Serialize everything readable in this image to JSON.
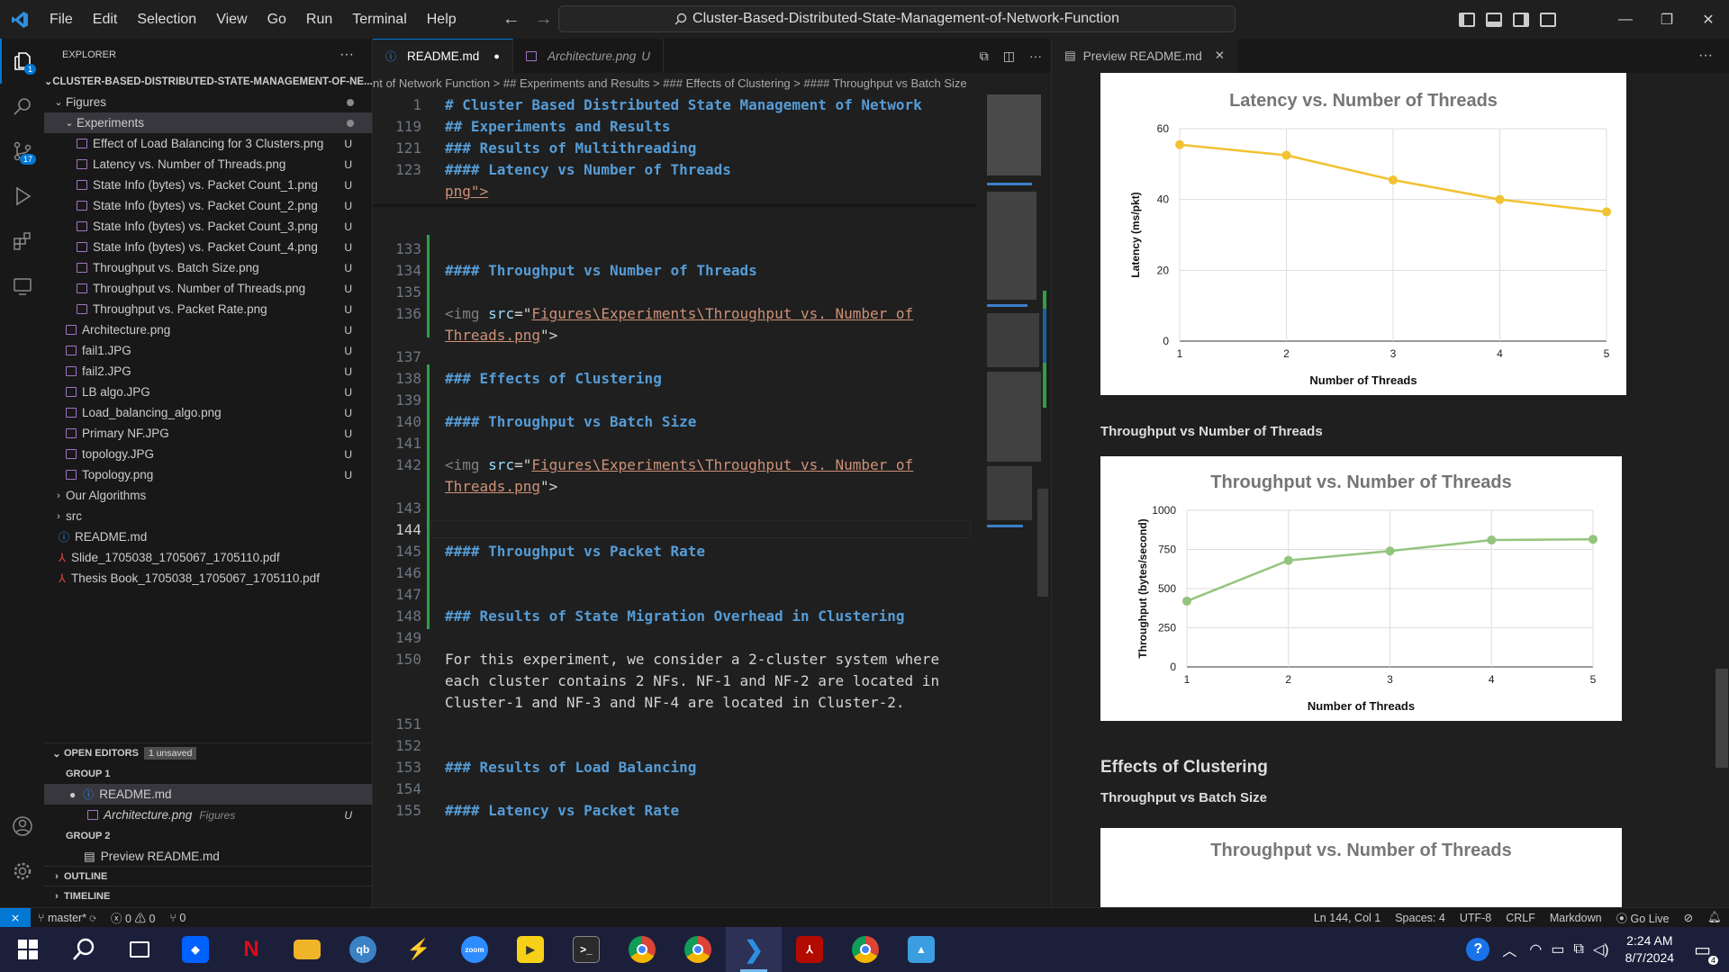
{
  "window": {
    "command_center": "Cluster-Based-Distributed-State-Management-of-Network-Function",
    "menu": [
      "File",
      "Edit",
      "Selection",
      "View",
      "Go",
      "Run",
      "Terminal",
      "Help"
    ]
  },
  "activity_bar": {
    "explorer_badge": "1",
    "scm_badge": "17"
  },
  "explorer": {
    "header": "EXPLORER",
    "root": "CLUSTER-BASED-DISTRIBUTED-STATE-MANAGEMENT-OF-NE...",
    "figures": "Figures",
    "experiments": "Experiments",
    "experiment_files": [
      "Effect of Load Balancing for 3 Clusters.png",
      "Latency vs. Number of Threads.png",
      "State Info (bytes) vs. Packet Count_1.png",
      "State Info (bytes) vs. Packet Count_2.png",
      "State Info (bytes) vs. Packet Count_3.png",
      "State Info (bytes) vs. Packet Count_4.png",
      "Throughput vs. Batch Size.png",
      "Throughput vs. Number of Threads.png",
      "Throughput vs. Packet Rate.png"
    ],
    "figure_files": [
      "Architecture.png",
      "fail1.JPG",
      "fail2.JPG",
      "LB algo.JPG",
      "Load_balancing_algo.png",
      "Primary NF.JPG",
      "topology.JPG",
      "Topology.png"
    ],
    "untracked": "U",
    "folders": [
      "Our Algorithms",
      "src"
    ],
    "root_files": [
      "README.md",
      "Slide_1705038_1705067_1705110.pdf",
      "Thesis Book_1705038_1705067_1705110.pdf"
    ]
  },
  "open_editors": {
    "title": "OPEN EDITORS",
    "unsaved": "1 unsaved",
    "group1": "GROUP 1",
    "readme": "README.md",
    "arch": "Architecture.png",
    "arch_dir": "Figures",
    "arch_status": "U",
    "group2": "GROUP 2",
    "preview": "Preview README.md"
  },
  "sections": {
    "outline": "OUTLINE",
    "timeline": "TIMELINE"
  },
  "tabs": {
    "readme": "README.md",
    "arch": "Architecture.png",
    "arch_status": "U",
    "preview": "Preview README.md"
  },
  "breadcrumb": "nt of Network Function > ## Experiments and Results > ### Effects of Clustering > #### Throughput vs Batch Size",
  "sticky": [
    {
      "n": "1",
      "t": "# Cluster Based Distributed State Management of Network"
    },
    {
      "n": "119",
      "t": "## Experiments and Results"
    },
    {
      "n": "121",
      "t": "### Results of Multithreading"
    },
    {
      "n": "123",
      "t": "#### Latency vs Number of Threads"
    }
  ],
  "code": {
    "l_png": "png\">",
    "n133": "133",
    "n134": "134",
    "t134": "#### Throughput vs Number of Threads",
    "n135": "135",
    "n136": "136",
    "img_open": "<img ",
    "src": "src",
    "eq": "=\"",
    "path1a": "Figures\\Experiments\\Throughput vs. Number of",
    "path1b": "Threads.png",
    "close": "\">",
    "n137": "137",
    "n138": "138",
    "t138": "### Effects of Clustering",
    "n139": "139",
    "n140": "140",
    "t140": "#### Throughput vs Batch Size",
    "n141": "141",
    "n142": "142",
    "n143": "143",
    "n144": "144",
    "n145": "145",
    "t145": "#### Throughput vs Packet Rate",
    "n146": "146",
    "n147": "147",
    "n148": "148",
    "t148": "### Results of State Migration Overhead in Clustering",
    "n149": "149",
    "n150": "150",
    "p1": "For this experiment, we consider a 2-cluster system where",
    "p2": "each cluster contains 2 NFs. NF-1 and NF-2 are located in",
    "p3": "Cluster-1 and NF-3 and NF-4 are located in Cluster-2.",
    "n151": "151",
    "n152": "152",
    "n153": "153",
    "t153": "### Results of Load Balancing",
    "n154": "154",
    "n155": "155",
    "t155": "#### Latency vs Packet Rate"
  },
  "preview": {
    "h_throughput_threads": "Throughput vs Number of Threads",
    "h_effects": "Effects of Clustering",
    "h_batch": "Throughput vs Batch Size",
    "partial_chart_title": "Throughput vs. Number of Threads"
  },
  "chart_data": [
    {
      "type": "line",
      "title": "Latency vs. Number of Threads",
      "xlabel": "Number of Threads",
      "ylabel": "Latency (ms/pkt)",
      "x": [
        1,
        2,
        3,
        4,
        5
      ],
      "values": [
        55.5,
        52.5,
        45.5,
        40,
        36.5
      ],
      "ylim": [
        0,
        60
      ],
      "yticks": [
        0,
        20,
        40,
        60
      ],
      "color": "#f1c232",
      "grid": true
    },
    {
      "type": "line",
      "title": "Throughput vs. Number of Threads",
      "xlabel": "Number of Threads",
      "ylabel": "Throughput (bytes/second)",
      "x": [
        1,
        2,
        3,
        4,
        5
      ],
      "values": [
        420,
        680,
        740,
        810,
        815
      ],
      "ylim": [
        0,
        1000
      ],
      "yticks": [
        0,
        250,
        500,
        750,
        1000
      ],
      "color": "#93c47d",
      "grid": true
    }
  ],
  "status": {
    "branch": "master*",
    "errors": "0",
    "warnings": "0",
    "ports": "0",
    "position": "Ln 144, Col 1",
    "spaces": "Spaces: 4",
    "encoding": "UTF-8",
    "eol": "CRLF",
    "lang": "Markdown",
    "golive": "Go Live"
  },
  "taskbar": {
    "time": "2:24 AM",
    "date": "8/7/2024",
    "notif": "4"
  }
}
